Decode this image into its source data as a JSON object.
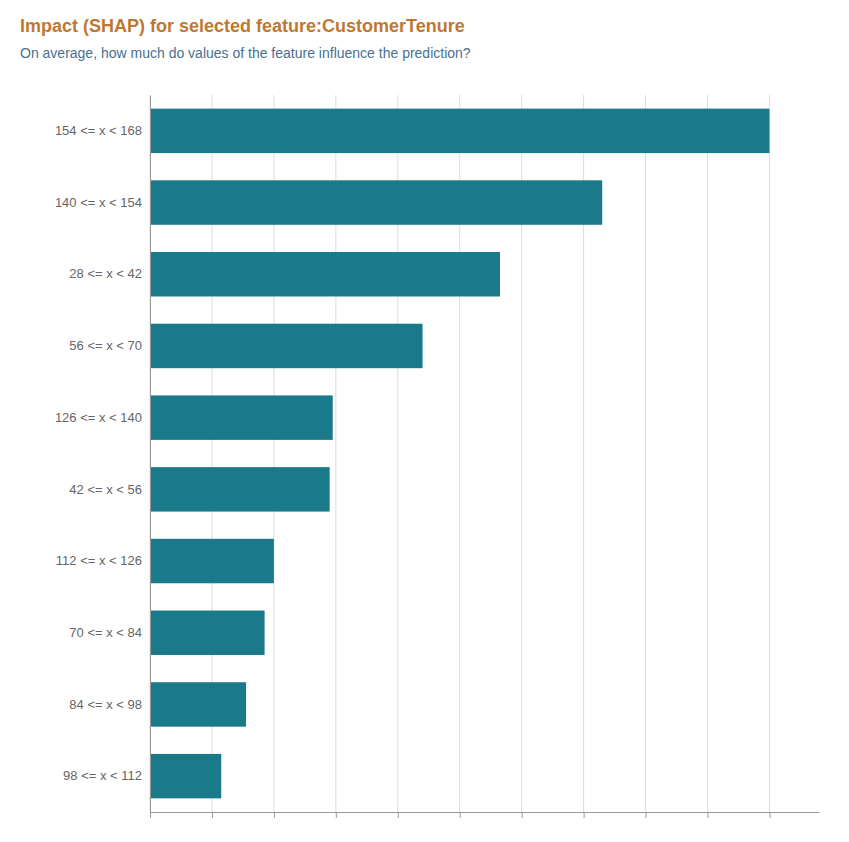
{
  "chart_data": {
    "type": "bar",
    "orientation": "horizontal",
    "title": "Impact (SHAP) for selected feature:CustomerTenure",
    "subtitle": "On average, how much do values of the feature influence the prediction?",
    "categories": [
      "154 <= x < 168",
      "140 <= x < 154",
      "28 <= x < 42",
      "56 <= x < 70",
      "126 <= x < 140",
      "42 <= x < 56",
      "112 <= x < 126",
      "70 <= x < 84",
      "84 <= x < 98",
      "98 <= x < 112"
    ],
    "values": [
      1.0,
      0.73,
      0.565,
      0.44,
      0.295,
      0.29,
      0.2,
      0.185,
      0.155,
      0.115
    ],
    "color": "#1a7a8a",
    "xlim": [
      0,
      1.08
    ],
    "xticks": [
      0,
      0.1,
      0.2,
      0.3,
      0.4,
      0.5,
      0.6,
      0.7,
      0.8,
      0.9,
      1.0
    ],
    "grid": true,
    "tick_labels": "y"
  }
}
